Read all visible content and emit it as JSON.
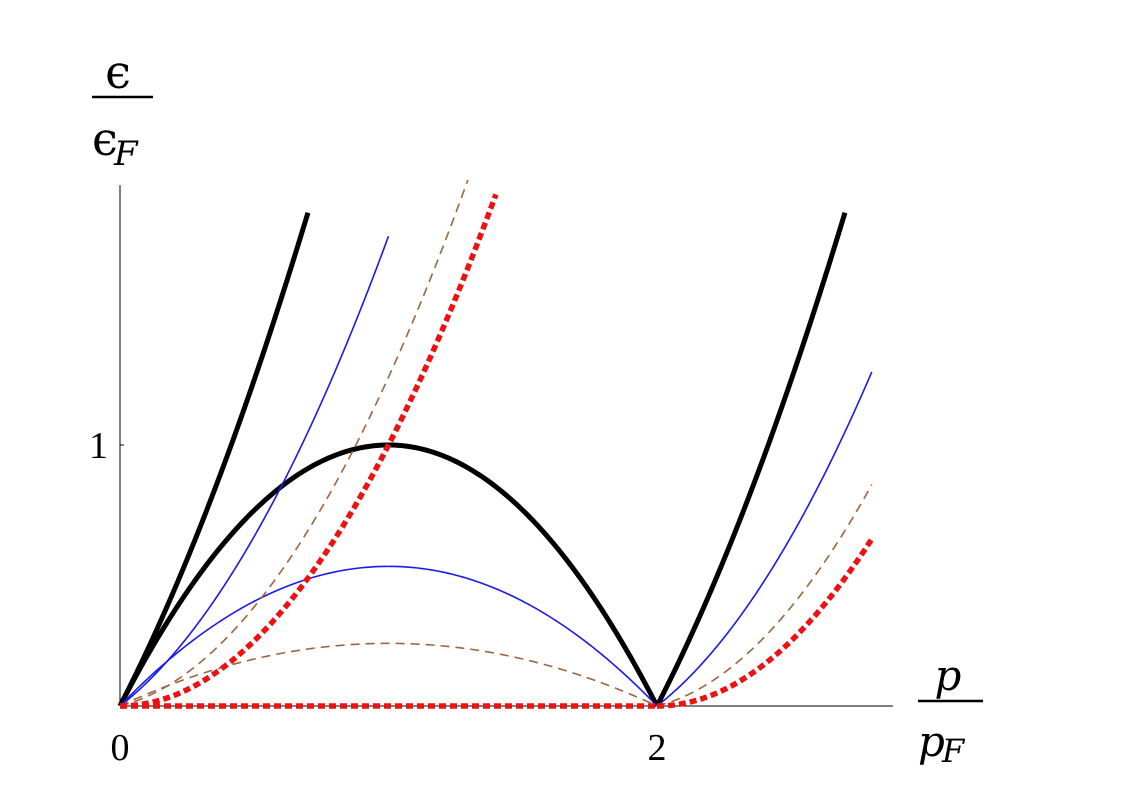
{
  "chart_data": {
    "type": "line",
    "xlabel": {
      "numerator": "p",
      "denominator_base": "p",
      "denominator_sub": "F"
    },
    "ylabel": {
      "numerator": "ϵ",
      "denominator_base": "ϵ",
      "denominator_sub": "F"
    },
    "xlim": [
      0,
      2.86
    ],
    "ylim": [
      0,
      2.0
    ],
    "x_ticks": [
      {
        "value": 0,
        "label": "0"
      },
      {
        "value": 2,
        "label": "2"
      }
    ],
    "y_ticks": [
      {
        "value": 1,
        "label": "1"
      }
    ],
    "grid": false,
    "legend": "none",
    "series": [
      {
        "style": "thick-solid",
        "color": "#000000",
        "branch": "upper",
        "coef": 0.5,
        "x": [
          0,
          0.1,
          0.2,
          0.3,
          0.4,
          0.5,
          0.6,
          0.7
        ],
        "y": [
          0,
          0.205,
          0.42,
          0.645,
          0.88,
          1.125,
          1.38,
          1.645
        ]
      },
      {
        "style": "thick-solid",
        "color": "#000000",
        "branch": "arch",
        "coef": 0,
        "x": [
          0,
          0.25,
          0.5,
          0.75,
          1.0,
          1.25,
          1.5,
          1.75,
          2.0
        ],
        "y": [
          0,
          0.4375,
          0.75,
          0.9375,
          1.0,
          0.9375,
          0.75,
          0.4375,
          0
        ]
      },
      {
        "style": "thick-solid",
        "color": "#000000",
        "branch": "upper-right",
        "coef": 0.5,
        "x": [
          2.0,
          2.1,
          2.2,
          2.3,
          2.4,
          2.5,
          2.6,
          2.7
        ],
        "y": [
          0,
          0.205,
          0.42,
          0.645,
          0.88,
          1.125,
          1.38,
          1.645
        ]
      },
      {
        "style": "thin-solid",
        "color": "#1a1aee",
        "branch": "upper",
        "coef": 0.6,
        "x": [
          0,
          0.2,
          0.4,
          0.6,
          0.8,
          1.0
        ],
        "y": [
          0,
          0.13,
          0.35,
          0.66,
          1.06,
          1.555
        ]
      },
      {
        "style": "thin-solid",
        "color": "#1a1aee",
        "branch": "arch",
        "coef": 0.6,
        "x": [
          0,
          0.25,
          0.5,
          0.75,
          1.0,
          1.25,
          1.5,
          1.75,
          2.0
        ],
        "y": [
          0,
          0.255,
          0.43,
          0.52,
          0.535,
          0.52,
          0.43,
          0.255,
          0
        ]
      },
      {
        "style": "thin-solid",
        "color": "#1a1aee",
        "branch": "upper-right",
        "coef": 0.6,
        "x": [
          2.0,
          2.2,
          2.4,
          2.6,
          2.8
        ],
        "y": [
          0,
          0.13,
          0.35,
          0.66,
          1.06
        ]
      },
      {
        "style": "thin-dashed",
        "color": "#a0643c",
        "branch": "upper",
        "coef": 0.87,
        "x": [
          0,
          0.25,
          0.5,
          0.75,
          1.0,
          1.25,
          1.35
        ],
        "y": [
          0,
          0.08,
          0.295,
          0.64,
          1.11,
          1.71,
          1.99
        ]
      },
      {
        "style": "thin-dashed",
        "color": "#a0643c",
        "branch": "arch",
        "coef": 0.87,
        "x": [
          0,
          0.25,
          0.5,
          0.75,
          1.0,
          1.25,
          1.5,
          1.75,
          2.0
        ],
        "y": [
          0,
          0.14,
          0.205,
          0.235,
          0.24,
          0.235,
          0.205,
          0.14,
          0
        ]
      },
      {
        "style": "thin-dashed",
        "color": "#a0643c",
        "branch": "upper-right",
        "coef": 0.87,
        "x": [
          2.0,
          2.2,
          2.4,
          2.6,
          2.8
        ],
        "y": [
          0,
          0.05,
          0.19,
          0.425,
          0.765
        ]
      },
      {
        "style": "thick-dotted",
        "color": "#ee1111",
        "branch": "upper",
        "coef": 1,
        "x": [
          0,
          0.25,
          0.5,
          0.75,
          1.0,
          1.25,
          1.4
        ],
        "y": [
          0,
          0.0625,
          0.25,
          0.5625,
          1.0,
          1.5625,
          1.96
        ]
      },
      {
        "style": "thick-dotted",
        "color": "#ee1111",
        "branch": "arch",
        "coef": 1,
        "x": [
          0,
          2.0
        ],
        "y": [
          0,
          0
        ]
      },
      {
        "style": "thick-dotted",
        "color": "#ee1111",
        "branch": "upper-right",
        "coef": 1,
        "x": [
          2.0,
          2.2,
          2.4,
          2.6,
          2.8
        ],
        "y": [
          0,
          0.04,
          0.16,
          0.36,
          0.64
        ]
      }
    ]
  }
}
